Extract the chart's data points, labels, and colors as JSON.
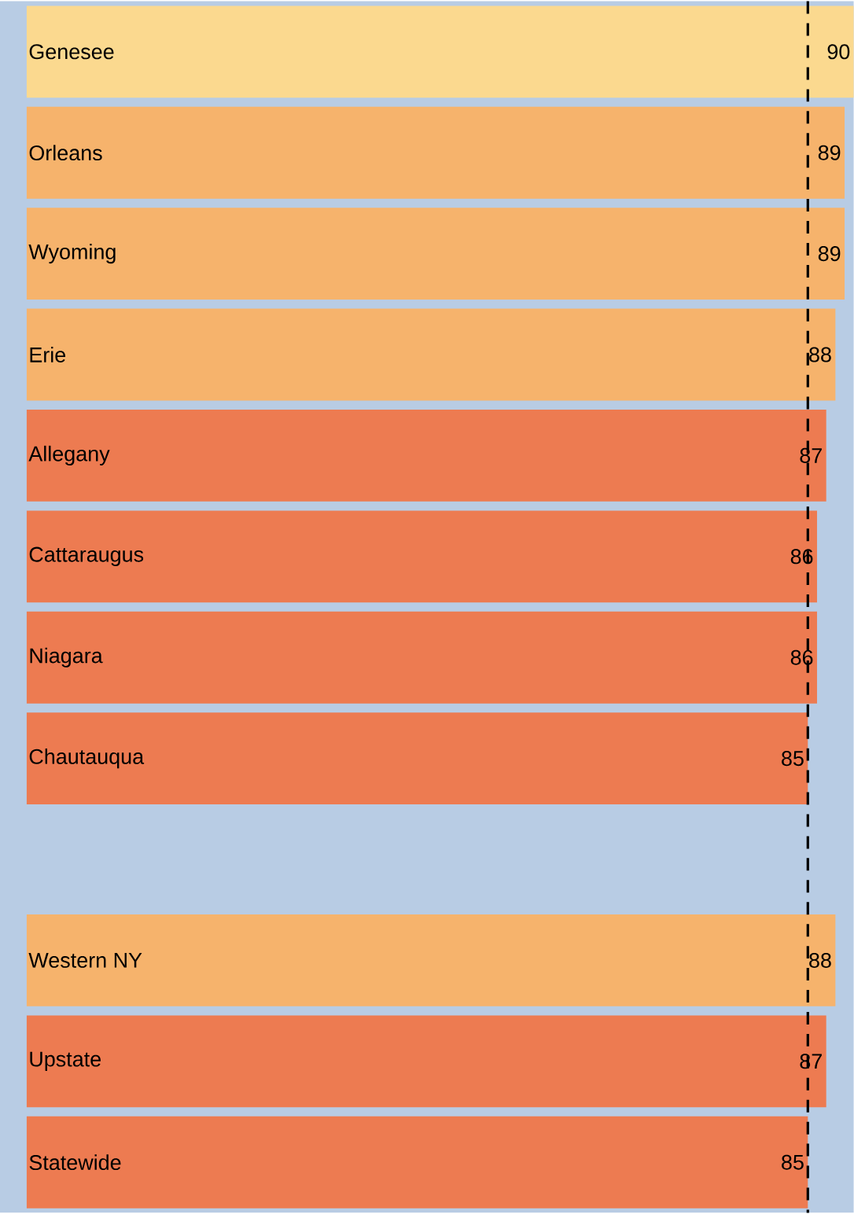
{
  "chart_data": {
    "type": "bar",
    "orientation": "horizontal",
    "categories": [
      "Genesee",
      "Orleans",
      "Wyoming",
      "Erie",
      "Allegany",
      "Cattaraugus",
      "Niagara",
      "Chautauqua",
      null,
      "Western NY",
      "Upstate",
      "Statewide"
    ],
    "values": [
      90,
      89,
      89,
      88,
      87,
      86,
      86,
      85,
      null,
      88,
      87,
      85
    ],
    "colors": [
      "#fbd98f",
      "#f6b36c",
      "#f6b36c",
      "#f6b36c",
      "#ed7b51",
      "#ed7b51",
      "#ed7b51",
      "#ed7b51",
      "#ed7b51",
      "#f6b36c",
      "#ed7b51",
      "#ed7b51"
    ],
    "data_labels": true,
    "ref_lines": [
      {
        "axis": "x",
        "value": 85,
        "line_style": "dashed",
        "color": "#000000"
      }
    ]
  }
}
